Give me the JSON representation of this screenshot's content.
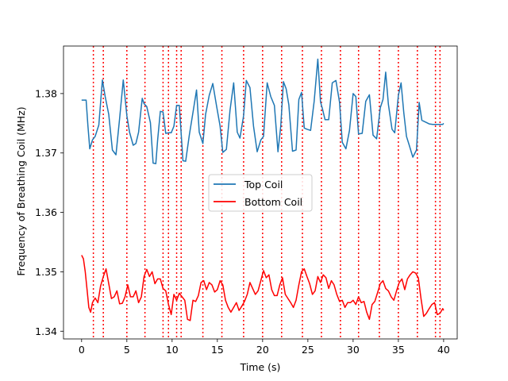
{
  "chart_data": {
    "type": "line",
    "title": "",
    "xlabel": "Time (s)",
    "ylabel": "Frequency of Breathing Coil (MHz)",
    "xlim": [
      -2,
      41.5
    ],
    "ylim": [
      1.3387,
      1.388
    ],
    "xticks": [
      0,
      5,
      10,
      15,
      20,
      25,
      30,
      35,
      40
    ],
    "yticks": [
      1.34,
      1.35,
      1.36,
      1.37,
      1.38
    ],
    "xtick_labels": [
      "0",
      "5",
      "10",
      "15",
      "20",
      "25",
      "30",
      "35",
      "40"
    ],
    "ytick_labels": [
      "1.34",
      "1.35",
      "1.36",
      "1.37",
      "1.38"
    ],
    "grid": false,
    "legend_position": "center",
    "series": [
      {
        "name": "Top Coil",
        "color": "#1f77b4",
        "x": [
          0.0,
          0.5,
          0.7,
          0.9,
          1.2,
          1.5,
          1.9,
          2.3,
          2.6,
          3.0,
          3.4,
          3.8,
          4.2,
          4.6,
          5.0,
          5.3,
          5.7,
          6.0,
          6.3,
          6.7,
          6.9,
          7.2,
          7.6,
          7.9,
          8.2,
          8.4,
          8.7,
          9.0,
          9.3,
          9.6,
          9.9,
          10.2,
          10.5,
          10.8,
          11.2,
          11.5,
          11.9,
          12.3,
          12.7,
          13.0,
          13.4,
          13.7,
          14.1,
          14.5,
          14.9,
          15.3,
          15.6,
          16.0,
          16.4,
          16.8,
          17.2,
          17.5,
          17.9,
          18.2,
          18.6,
          19.0,
          19.4,
          19.8,
          20.1,
          20.5,
          20.9,
          21.3,
          21.7,
          22.0,
          22.3,
          22.6,
          22.9,
          23.3,
          23.7,
          24.0,
          24.3,
          24.6,
          24.9,
          25.3,
          25.7,
          26.1,
          26.4,
          26.6,
          26.9,
          27.3,
          27.7,
          28.1,
          28.5,
          28.8,
          29.2,
          29.6,
          30.0,
          30.3,
          30.6,
          31.0,
          31.4,
          31.8,
          32.2,
          32.6,
          33.0,
          33.3,
          33.6,
          33.9,
          34.3,
          34.6,
          35.0,
          35.3,
          35.6,
          35.9,
          36.2,
          36.6,
          37.0,
          37.3,
          37.6,
          38.0,
          38.4,
          38.8,
          39.1,
          39.4,
          39.6,
          39.9,
          40.0
        ],
        "y": [
          1.3789,
          1.3789,
          1.3745,
          1.3707,
          1.3722,
          1.3728,
          1.3747,
          1.3823,
          1.3795,
          1.3765,
          1.3705,
          1.3697,
          1.3758,
          1.3823,
          1.3763,
          1.3735,
          1.3713,
          1.3716,
          1.3735,
          1.3792,
          1.3783,
          1.3778,
          1.3751,
          1.3683,
          1.3682,
          1.3722,
          1.377,
          1.3769,
          1.3733,
          1.3734,
          1.3734,
          1.3745,
          1.378,
          1.378,
          1.3687,
          1.3686,
          1.373,
          1.3768,
          1.3806,
          1.3735,
          1.3716,
          1.3765,
          1.3797,
          1.3817,
          1.378,
          1.3745,
          1.3701,
          1.3706,
          1.3772,
          1.3818,
          1.3735,
          1.3725,
          1.3763,
          1.3822,
          1.381,
          1.3745,
          1.3702,
          1.3722,
          1.3728,
          1.3818,
          1.3795,
          1.378,
          1.3702,
          1.3745,
          1.382,
          1.3808,
          1.3781,
          1.3703,
          1.3705,
          1.379,
          1.3802,
          1.3742,
          1.374,
          1.3738,
          1.3787,
          1.3858,
          1.3786,
          1.3775,
          1.3756,
          1.3756,
          1.3818,
          1.3822,
          1.3785,
          1.3718,
          1.3707,
          1.3738,
          1.38,
          1.3795,
          1.3732,
          1.3733,
          1.3787,
          1.3798,
          1.373,
          1.3724,
          1.3776,
          1.379,
          1.3836,
          1.3782,
          1.374,
          1.3734,
          1.3797,
          1.3818,
          1.3768,
          1.3728,
          1.3713,
          1.3693,
          1.3705,
          1.3785,
          1.3755,
          1.3752,
          1.3749,
          1.3748,
          1.3748,
          1.3748,
          1.3748,
          1.3748,
          1.375
        ],
        "style": "solid"
      },
      {
        "name": "Bottom Coil",
        "color": "#ff0000",
        "x": [
          0.0,
          0.2,
          0.4,
          0.6,
          0.8,
          1.0,
          1.2,
          1.5,
          1.8,
          2.1,
          2.4,
          2.7,
          3.0,
          3.3,
          3.6,
          3.9,
          4.2,
          4.5,
          4.8,
          5.1,
          5.4,
          5.7,
          6.0,
          6.3,
          6.6,
          6.9,
          7.2,
          7.5,
          7.8,
          8.1,
          8.4,
          8.7,
          9.0,
          9.3,
          9.6,
          9.9,
          10.2,
          10.5,
          10.8,
          11.1,
          11.4,
          11.7,
          12.0,
          12.3,
          12.6,
          12.9,
          13.2,
          13.5,
          13.8,
          14.1,
          14.4,
          14.7,
          15.0,
          15.3,
          15.6,
          15.9,
          16.2,
          16.5,
          16.8,
          17.1,
          17.4,
          17.7,
          18.0,
          18.3,
          18.6,
          18.9,
          19.2,
          19.5,
          19.8,
          20.1,
          20.4,
          20.7,
          21.0,
          21.3,
          21.6,
          21.9,
          22.2,
          22.5,
          22.8,
          23.1,
          23.4,
          23.7,
          24.0,
          24.3,
          24.6,
          24.9,
          25.2,
          25.5,
          25.8,
          26.1,
          26.4,
          26.7,
          27.0,
          27.3,
          27.6,
          27.9,
          28.2,
          28.5,
          28.8,
          29.1,
          29.4,
          29.7,
          30.0,
          30.3,
          30.6,
          30.9,
          31.2,
          31.5,
          31.8,
          32.1,
          32.4,
          32.7,
          33.0,
          33.3,
          33.6,
          33.9,
          34.2,
          34.5,
          34.8,
          35.1,
          35.4,
          35.7,
          36.0,
          36.3,
          36.6,
          36.9,
          37.2,
          37.5,
          37.8,
          38.1,
          38.4,
          38.7,
          39.0,
          39.3,
          39.6,
          39.9,
          40.0
        ],
        "y": [
          1.3528,
          1.3522,
          1.35,
          1.3471,
          1.344,
          1.3432,
          1.3448,
          1.3456,
          1.3448,
          1.3476,
          1.3492,
          1.3505,
          1.348,
          1.3455,
          1.3458,
          1.3468,
          1.3446,
          1.3447,
          1.3458,
          1.3478,
          1.3458,
          1.3458,
          1.3468,
          1.3448,
          1.3458,
          1.3492,
          1.3504,
          1.3492,
          1.35,
          1.348,
          1.3488,
          1.3488,
          1.3472,
          1.3468,
          1.3445,
          1.3428,
          1.3462,
          1.3452,
          1.3464,
          1.3458,
          1.3452,
          1.342,
          1.3418,
          1.3452,
          1.345,
          1.346,
          1.3482,
          1.3485,
          1.347,
          1.3482,
          1.3478,
          1.3466,
          1.347,
          1.3485,
          1.3478,
          1.3452,
          1.344,
          1.3432,
          1.344,
          1.3448,
          1.3435,
          1.3442,
          1.345,
          1.3462,
          1.3482,
          1.3472,
          1.3462,
          1.3468,
          1.3485,
          1.3502,
          1.349,
          1.3495,
          1.347,
          1.346,
          1.346,
          1.3478,
          1.349,
          1.3462,
          1.3455,
          1.3448,
          1.344,
          1.3452,
          1.3478,
          1.35,
          1.3505,
          1.3492,
          1.348,
          1.3462,
          1.3468,
          1.3492,
          1.3482,
          1.3495,
          1.349,
          1.3472,
          1.3485,
          1.3478,
          1.3462,
          1.345,
          1.3452,
          1.344,
          1.3448,
          1.3448,
          1.3452,
          1.3445,
          1.3458,
          1.3448,
          1.345,
          1.3432,
          1.342,
          1.3445,
          1.345,
          1.3465,
          1.348,
          1.3485,
          1.3472,
          1.3468,
          1.3458,
          1.3452,
          1.3468,
          1.3482,
          1.3488,
          1.347,
          1.3488,
          1.3495,
          1.35,
          1.3498,
          1.349,
          1.3455,
          1.3425,
          1.343,
          1.3438,
          1.3445,
          1.3448,
          1.3428,
          1.343,
          1.3438,
          1.3435
        ],
        "style": "solid"
      }
    ],
    "vertical_lines": {
      "color": "#ff0000",
      "style": "dotted",
      "x": [
        1.3,
        2.4,
        5.0,
        7.0,
        9.0,
        9.6,
        10.5,
        11.0,
        13.4,
        15.5,
        17.9,
        20.0,
        22.1,
        24.4,
        26.5,
        28.6,
        30.6,
        32.9,
        35.0,
        37.1,
        39.1,
        39.6
      ]
    },
    "legend": [
      {
        "label": "Top Coil",
        "color": "#1f77b4"
      },
      {
        "label": "Bottom Coil",
        "color": "#ff0000"
      }
    ]
  }
}
